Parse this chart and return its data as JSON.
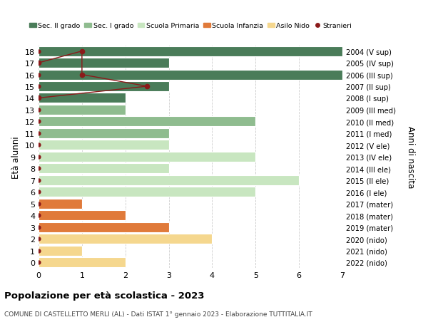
{
  "ages": [
    18,
    17,
    16,
    15,
    14,
    13,
    12,
    11,
    10,
    9,
    8,
    7,
    6,
    5,
    4,
    3,
    2,
    1,
    0
  ],
  "right_labels": [
    "2004 (V sup)",
    "2005 (IV sup)",
    "2006 (III sup)",
    "2007 (II sup)",
    "2008 (I sup)",
    "2009 (III med)",
    "2010 (II med)",
    "2011 (I med)",
    "2012 (V ele)",
    "2013 (IV ele)",
    "2014 (III ele)",
    "2015 (II ele)",
    "2016 (I ele)",
    "2017 (mater)",
    "2018 (mater)",
    "2019 (mater)",
    "2020 (nido)",
    "2021 (nido)",
    "2022 (nido)"
  ],
  "bar_values": [
    7,
    3,
    7,
    3,
    2,
    2,
    5,
    3,
    3,
    5,
    3,
    6,
    5,
    1,
    2,
    3,
    4,
    1,
    2
  ],
  "bar_colors": [
    "#4a7c59",
    "#4a7c59",
    "#4a7c59",
    "#4a7c59",
    "#4a7c59",
    "#8fbc8f",
    "#8fbc8f",
    "#8fbc8f",
    "#c8e6c0",
    "#c8e6c0",
    "#c8e6c0",
    "#c8e6c0",
    "#c8e6c0",
    "#e07a3a",
    "#e07a3a",
    "#e07a3a",
    "#f5d78e",
    "#f5d78e",
    "#f5d78e"
  ],
  "color_sec2": "#4a7c59",
  "color_sec1": "#8fbc8f",
  "color_primaria": "#c8e6c0",
  "color_infanzia": "#e07a3a",
  "color_nido": "#f5d78e",
  "color_stranieri": "#8b1a1a",
  "stranieri_line_ages": [
    17,
    18,
    16,
    15,
    14
  ],
  "stranieri_line_vals": [
    0,
    1,
    1,
    2.5,
    0
  ],
  "title": "Popolazione per età scolastica - 2023",
  "subtitle": "COMUNE DI CASTELLETTO MERLI (AL) - Dati ISTAT 1° gennaio 2023 - Elaborazione TUTTITALIA.IT",
  "ylabel": "Età alunni",
  "right_ylabel": "Anni di nascita",
  "xlabel_vals": [
    0,
    1,
    2,
    3,
    4,
    5,
    6,
    7
  ],
  "xlim": [
    0,
    7
  ],
  "bar_height": 0.85,
  "bg_color": "#ffffff",
  "grid_color": "#cccccc"
}
